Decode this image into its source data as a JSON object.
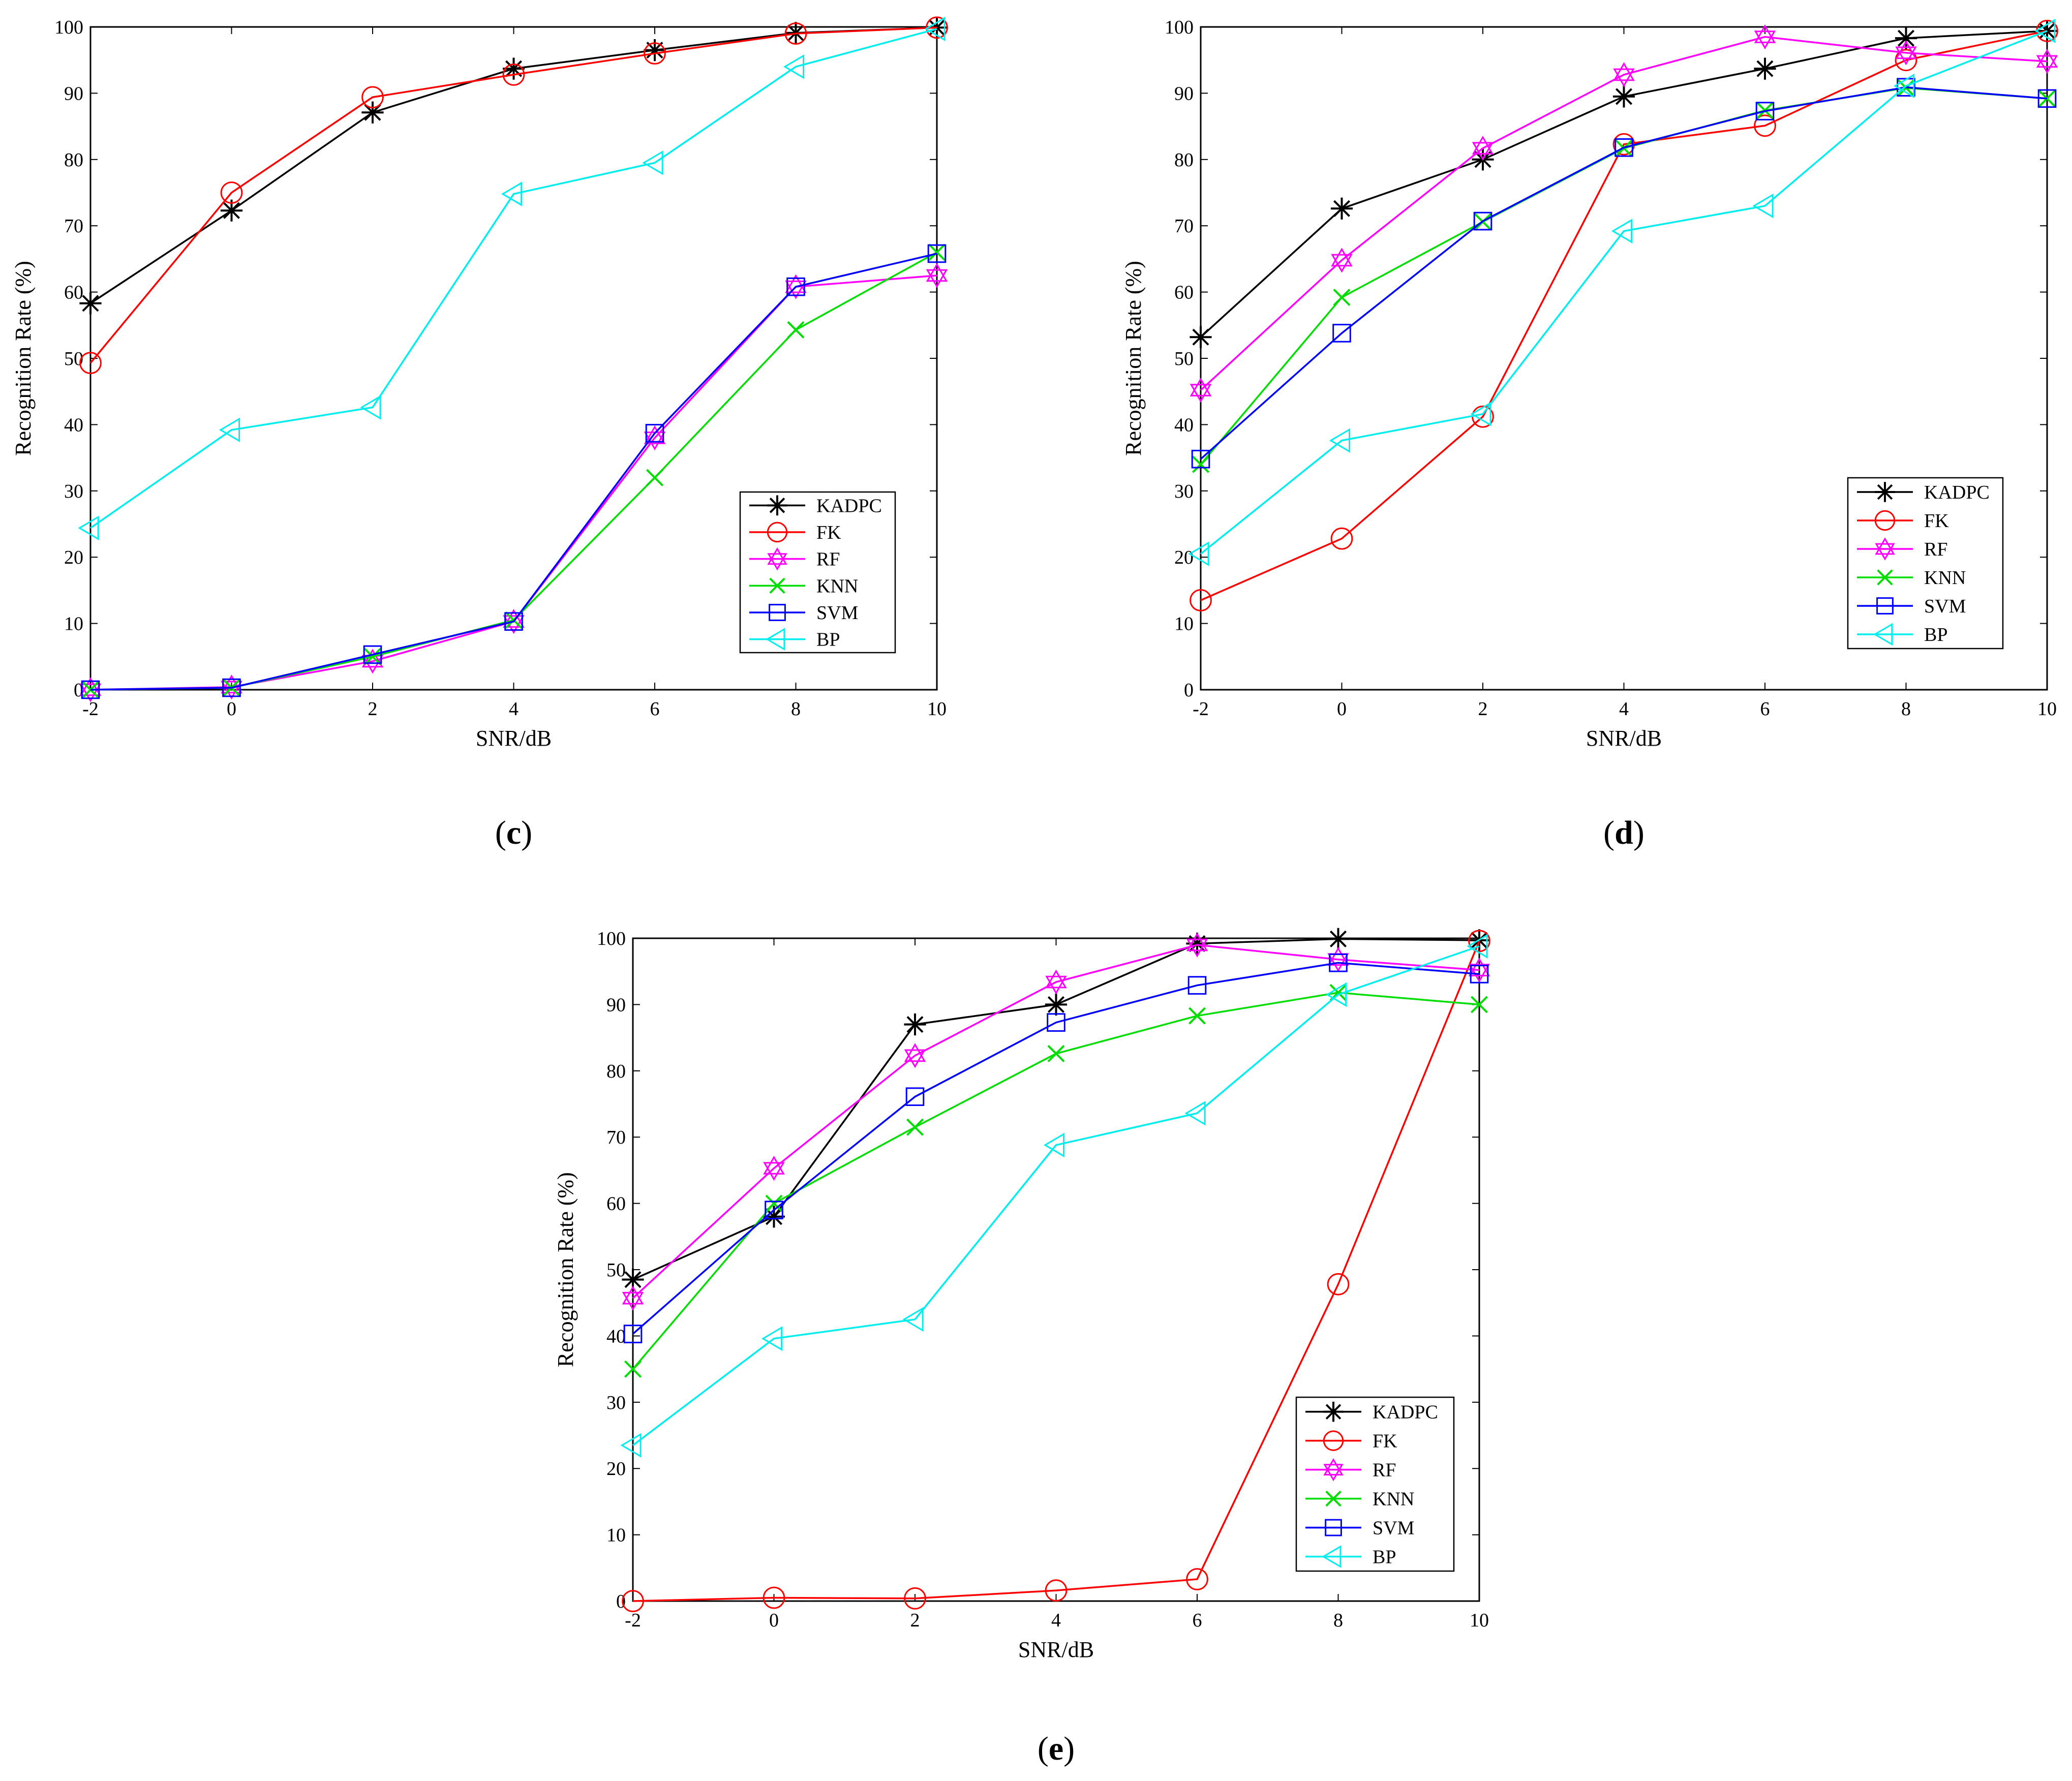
{
  "chart_data": [
    {
      "type": "line",
      "panel_label": "c",
      "xlabel": "SNR/dB",
      "ylabel": "Recognition Rate (%)",
      "xlim": [
        -2,
        10
      ],
      "ylim": [
        0,
        100
      ],
      "x": [
        -2,
        0,
        2,
        4,
        6,
        8,
        10
      ],
      "xticks": [
        "-2",
        "0",
        "2",
        "4",
        "6",
        "8",
        "10"
      ],
      "yticks": [
        "0",
        "10",
        "20",
        "30",
        "40",
        "50",
        "60",
        "70",
        "80",
        "90",
        "100"
      ],
      "legend_position": "lower-right",
      "series": [
        {
          "name": "KADPC",
          "color": "#000000",
          "marker": "star",
          "values": [
            58.3,
            72.3,
            87.1,
            93.7,
            96.5,
            99.1,
            99.9
          ]
        },
        {
          "name": "FK",
          "color": "#ff0000",
          "marker": "circle",
          "values": [
            49.3,
            75.0,
            89.4,
            92.8,
            96.0,
            99.0,
            99.9
          ]
        },
        {
          "name": "RF",
          "color": "#ff00ff",
          "marker": "hexagram",
          "values": [
            0.0,
            0.4,
            4.3,
            10.3,
            38.0,
            60.8,
            62.5
          ]
        },
        {
          "name": "KNN",
          "color": "#00dd00",
          "marker": "x",
          "values": [
            0.0,
            0.3,
            5.0,
            10.5,
            32.0,
            54.3,
            66.0
          ]
        },
        {
          "name": "SVM",
          "color": "#0000ff",
          "marker": "square",
          "values": [
            0.0,
            0.3,
            5.3,
            10.3,
            38.7,
            60.8,
            65.8
          ]
        },
        {
          "name": "BP",
          "color": "#00eeee",
          "marker": "triangle-left",
          "values": [
            24.4,
            39.2,
            42.6,
            74.8,
            79.5,
            94.0,
            99.7
          ]
        }
      ]
    },
    {
      "type": "line",
      "panel_label": "d",
      "xlabel": "SNR/dB",
      "ylabel": "Recognition Rate (%)",
      "xlim": [
        -2,
        10
      ],
      "ylim": [
        0,
        100
      ],
      "x": [
        -2,
        0,
        2,
        4,
        6,
        8,
        10
      ],
      "xticks": [
        "-2",
        "0",
        "2",
        "4",
        "6",
        "8",
        "10"
      ],
      "yticks": [
        "0",
        "10",
        "20",
        "30",
        "40",
        "50",
        "60",
        "70",
        "80",
        "90",
        "100"
      ],
      "legend_position": "lower-right",
      "series": [
        {
          "name": "KADPC",
          "color": "#000000",
          "marker": "star",
          "values": [
            53.2,
            72.6,
            80.0,
            89.5,
            93.7,
            98.3,
            99.4
          ]
        },
        {
          "name": "FK",
          "color": "#ff0000",
          "marker": "circle",
          "values": [
            13.5,
            22.8,
            41.2,
            82.3,
            85.1,
            95.0,
            99.4
          ]
        },
        {
          "name": "RF",
          "color": "#ff00ff",
          "marker": "hexagram",
          "values": [
            45.2,
            64.8,
            81.7,
            92.8,
            98.5,
            96.1,
            94.8
          ]
        },
        {
          "name": "KNN",
          "color": "#00dd00",
          "marker": "x",
          "values": [
            34.0,
            59.2,
            70.6,
            81.7,
            87.4,
            90.8,
            89.2
          ]
        },
        {
          "name": "SVM",
          "color": "#0000ff",
          "marker": "square",
          "values": [
            34.8,
            53.8,
            70.7,
            81.8,
            87.3,
            90.9,
            89.2
          ]
        },
        {
          "name": "BP",
          "color": "#00eeee",
          "marker": "triangle-left",
          "values": [
            20.5,
            37.6,
            41.6,
            69.2,
            73.0,
            91.1,
            99.4
          ]
        }
      ]
    },
    {
      "type": "line",
      "panel_label": "e",
      "xlabel": "SNR/dB",
      "ylabel": "Recognition Rate (%)",
      "xlim": [
        -2,
        10
      ],
      "ylim": [
        0,
        100
      ],
      "x": [
        -2,
        0,
        2,
        4,
        6,
        8,
        10
      ],
      "xticks": [
        "-2",
        "0",
        "2",
        "4",
        "6",
        "8",
        "10"
      ],
      "yticks": [
        "0",
        "10",
        "20",
        "30",
        "40",
        "50",
        "60",
        "70",
        "80",
        "90",
        "100"
      ],
      "legend_position": "lower-right",
      "series": [
        {
          "name": "KADPC",
          "color": "#000000",
          "marker": "star",
          "values": [
            48.5,
            58.0,
            87.0,
            90.0,
            99.2,
            99.9,
            99.7
          ]
        },
        {
          "name": "FK",
          "color": "#ff0000",
          "marker": "circle",
          "values": [
            0.0,
            0.5,
            0.4,
            1.6,
            3.3,
            47.8,
            99.6
          ]
        },
        {
          "name": "RF",
          "color": "#ff00ff",
          "marker": "hexagram",
          "values": [
            45.7,
            65.3,
            82.3,
            93.4,
            99.0,
            96.8,
            95.2
          ]
        },
        {
          "name": "KNN",
          "color": "#00dd00",
          "marker": "x",
          "values": [
            35.0,
            60.0,
            71.5,
            82.6,
            88.3,
            91.8,
            90.0
          ]
        },
        {
          "name": "SVM",
          "color": "#0000ff",
          "marker": "square",
          "values": [
            40.3,
            59.0,
            76.1,
            87.3,
            92.9,
            96.3,
            94.6
          ]
        },
        {
          "name": "BP",
          "color": "#00eeee",
          "marker": "triangle-left",
          "values": [
            23.5,
            39.6,
            42.5,
            68.8,
            73.6,
            91.5,
            98.8
          ]
        }
      ]
    }
  ]
}
